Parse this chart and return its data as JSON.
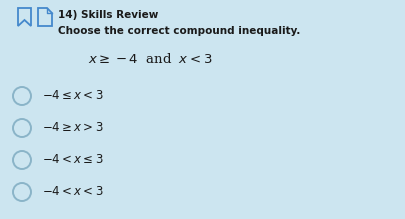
{
  "background_color": "#cce5f0",
  "title_number": "14)",
  "title_label": "Skills Review",
  "subtitle": "Choose the correct compound inequality.",
  "condition": "$x \\geq -4$  and  $x < 3$",
  "options": [
    "$-4 \\leq x < 3$",
    "$-4 \\geq x > 3$",
    "$-4 < x \\leq 3$",
    "$-4 < x < 3$"
  ],
  "circle_color": "#8ab4c8",
  "text_color": "#1a1a1a",
  "icon_color": "#4488cc",
  "title_fontsize": 7.5,
  "option_fontsize": 8.5,
  "condition_fontsize": 9.5
}
